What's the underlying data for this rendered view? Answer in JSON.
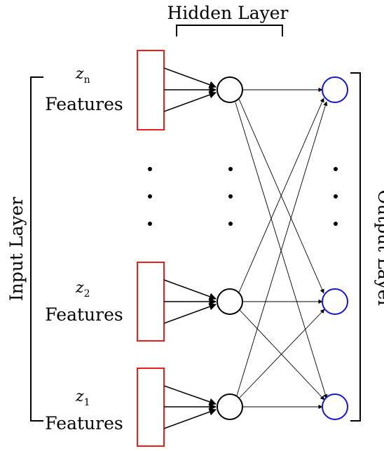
{
  "labels": {
    "hidden_layer": "Hidden Layer",
    "input_layer": "Input Layer",
    "output_layer": "Output Layer"
  },
  "groups": [
    {
      "var": "z",
      "sub": "n",
      "features": "Features"
    },
    {
      "var": "z",
      "sub": "2",
      "features": "Features"
    },
    {
      "var": "z",
      "sub": "1",
      "features": "Features"
    }
  ],
  "colors": {
    "input_box": "#e8201b",
    "output_node": "#1515d6",
    "hidden_node": "#000000",
    "line": "#000000"
  }
}
